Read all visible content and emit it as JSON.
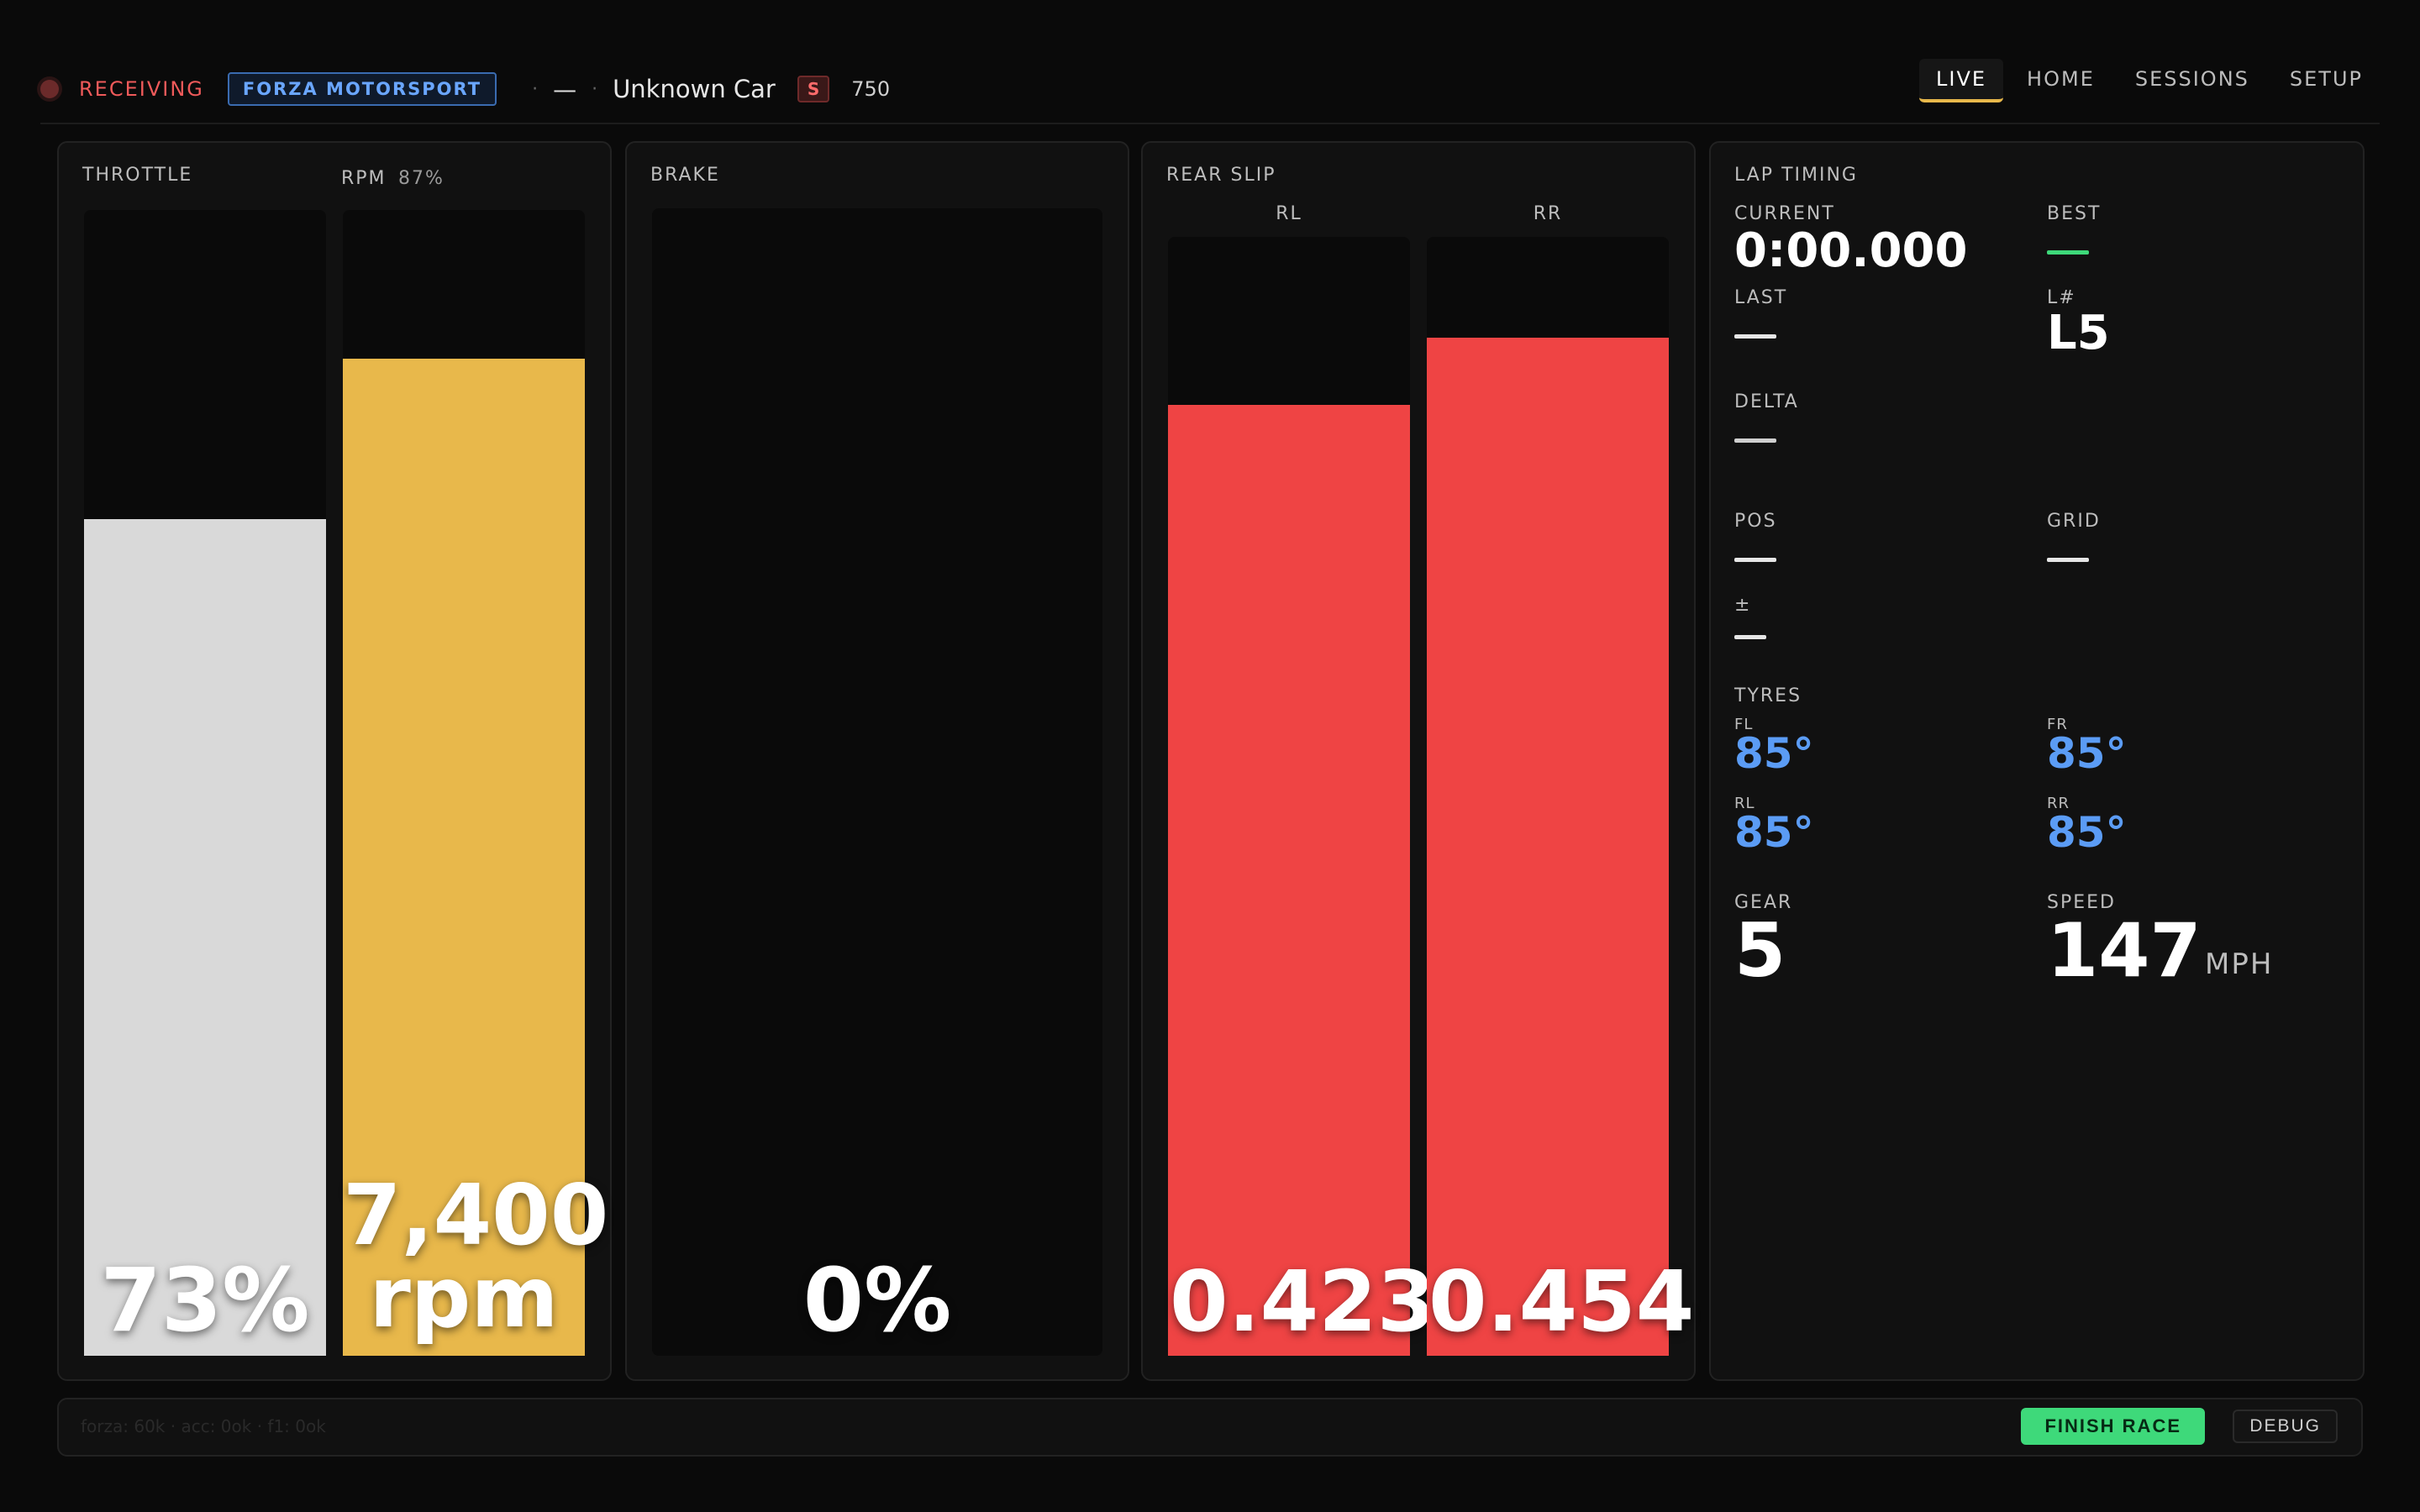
{
  "status": {
    "label": "RECEIVING",
    "game": "FORZA MOTORSPORT",
    "track": "—",
    "car": "Unknown Car",
    "car_class": "S",
    "pi": "750"
  },
  "nav": {
    "items": [
      "LIVE",
      "HOME",
      "SESSIONS",
      "SETUP"
    ],
    "active": "LIVE"
  },
  "throttle": {
    "label": "THROTTLE",
    "value_text": "73%",
    "fraction": 0.73
  },
  "rpm": {
    "label": "RPM",
    "percent_text": "87%",
    "value_line1": "7,400",
    "value_line2": "rpm",
    "fraction": 0.87
  },
  "brake": {
    "label": "BRAKE",
    "value_text": "0%",
    "fraction": 0.0
  },
  "rear_slip": {
    "label": "REAR SLIP",
    "rl": {
      "label": "RL",
      "value_text": "0.423",
      "fraction": 0.85
    },
    "rr": {
      "label": "RR",
      "value_text": "0.454",
      "fraction": 0.91
    }
  },
  "lap_timing": {
    "label": "LAP TIMING",
    "current_label": "CURRENT",
    "current_value": "0:00.000",
    "best_label": "BEST",
    "last_label": "LAST",
    "lap_label": "L#",
    "lap_value": "L5",
    "delta_label": "DELTA",
    "pos_label": "POS",
    "grid_label": "GRID",
    "plusminus_label": "±"
  },
  "tyres": {
    "label": "TYRES",
    "fl": {
      "label": "FL",
      "value": "85°"
    },
    "fr": {
      "label": "FR",
      "value": "85°"
    },
    "rl": {
      "label": "RL",
      "value": "85°"
    },
    "rr": {
      "label": "RR",
      "value": "85°"
    }
  },
  "gear": {
    "label": "GEAR",
    "value": "5"
  },
  "speed": {
    "label": "SPEED",
    "value": "147",
    "unit": "MPH"
  },
  "footer": {
    "debug_text": "forza: 60k · acc: 0ok · f1: 0ok",
    "finish_label": "FINISH RACE",
    "debug_label": "DEBUG"
  },
  "colors": {
    "throttle": "#d9d9d9",
    "rpm": "#e8b84b",
    "slip": "#ef4444",
    "best": "#3ed97a",
    "tyre": "#5b9cf5"
  }
}
